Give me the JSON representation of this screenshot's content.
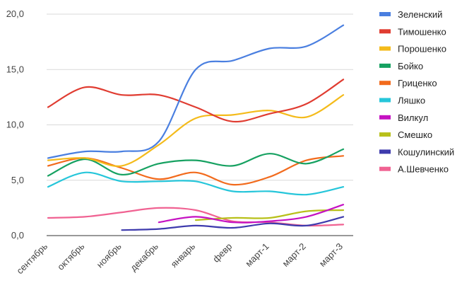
{
  "chart_data": {
    "type": "line",
    "title": "",
    "xlabel": "",
    "ylabel": "",
    "categories": [
      "сентябрь",
      "октябрь",
      "ноябрь",
      "декабрь",
      "январь",
      "февр",
      "март-1",
      "март-2",
      "март-3"
    ],
    "yticks": [
      "0,0",
      "5,0",
      "10,0",
      "15,0",
      "20,0"
    ],
    "ylim": [
      0,
      20
    ],
    "grid": true,
    "legend_position": "right",
    "series": [
      {
        "name": "Зеленский",
        "color": "#4a7fe0",
        "values": [
          7.0,
          7.6,
          7.6,
          8.5,
          15.0,
          15.8,
          16.9,
          17.1,
          19.0
        ]
      },
      {
        "name": "Тимошенко",
        "color": "#e03c31",
        "values": [
          11.6,
          13.4,
          12.7,
          12.7,
          11.6,
          10.3,
          11.0,
          11.9,
          14.1
        ]
      },
      {
        "name": "Порошенко",
        "color": "#f4bb1b",
        "values": [
          6.8,
          7.0,
          6.3,
          8.2,
          10.6,
          10.9,
          11.3,
          10.7,
          12.7
        ]
      },
      {
        "name": "Бойко",
        "color": "#16a161",
        "values": [
          5.4,
          6.9,
          5.5,
          6.5,
          6.8,
          6.3,
          7.4,
          6.5,
          7.8
        ]
      },
      {
        "name": "Гриценко",
        "color": "#f26b1d",
        "values": [
          6.3,
          7.0,
          6.1,
          5.1,
          5.7,
          4.6,
          5.3,
          6.8,
          7.2
        ]
      },
      {
        "name": "Ляшко",
        "color": "#26c6da",
        "values": [
          4.4,
          5.7,
          4.9,
          4.9,
          4.9,
          4.0,
          4.0,
          3.7,
          4.4
        ]
      },
      {
        "name": "Вилкул",
        "color": "#c512c2",
        "values": [
          null,
          null,
          null,
          1.2,
          1.7,
          1.2,
          1.3,
          1.7,
          2.8
        ]
      },
      {
        "name": "Смешко",
        "color": "#b8c01a",
        "values": [
          null,
          null,
          null,
          null,
          1.4,
          1.6,
          1.6,
          2.2,
          2.3
        ]
      },
      {
        "name": "Кошулинский",
        "color": "#3e3bad",
        "values": [
          null,
          null,
          0.5,
          0.6,
          0.9,
          0.7,
          1.1,
          0.9,
          1.7
        ]
      },
      {
        "name": "А.Шевченко",
        "color": "#f06292",
        "values": [
          1.6,
          1.7,
          2.1,
          2.5,
          2.3,
          1.3,
          1.2,
          0.9,
          1.0
        ]
      }
    ]
  }
}
